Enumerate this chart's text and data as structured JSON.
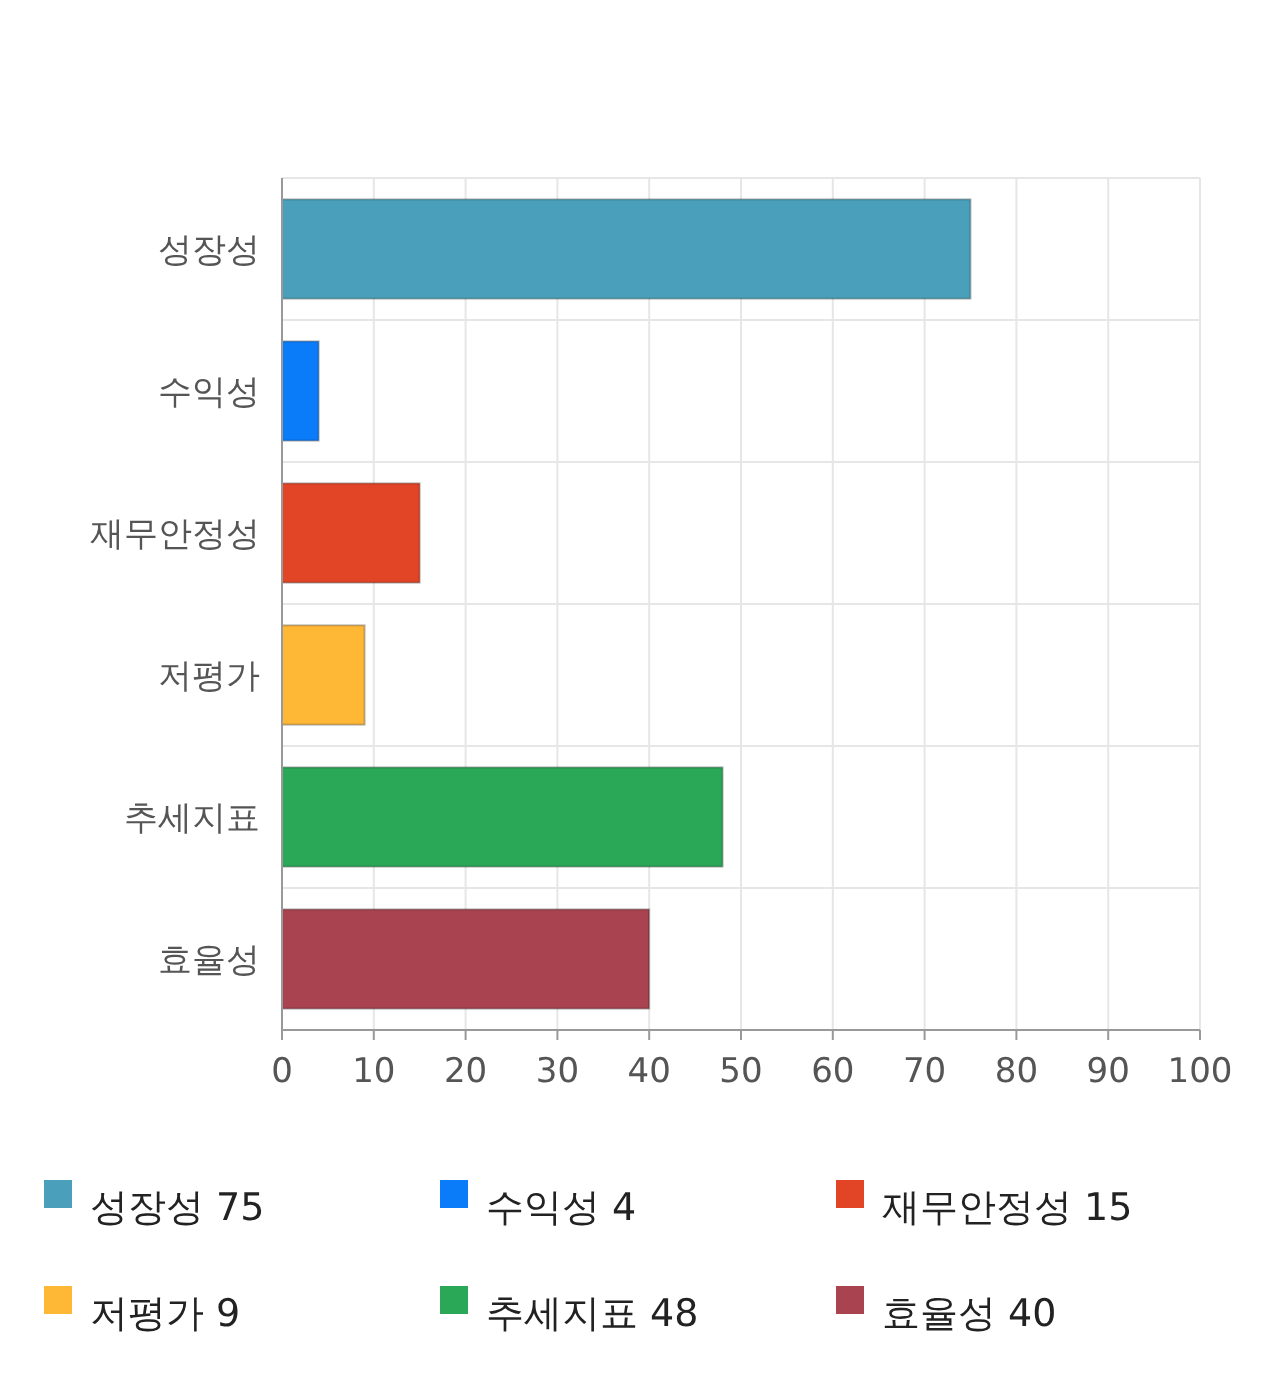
{
  "chart_data": {
    "type": "bar",
    "orientation": "horizontal",
    "categories": [
      "성장성",
      "수익성",
      "재무안정성",
      "저평가",
      "추세지표",
      "효율성"
    ],
    "series": [
      {
        "name": "성장성 75",
        "color": "#4aa0ba",
        "values": [
          75,
          null,
          null,
          null,
          null,
          null
        ]
      },
      {
        "name": "수익성 4",
        "color": "#0a7cfa",
        "values": [
          null,
          4,
          null,
          null,
          null,
          null
        ]
      },
      {
        "name": "재무안정성 15",
        "color": "#e24426",
        "values": [
          null,
          null,
          15,
          null,
          null,
          null
        ]
      },
      {
        "name": "저평가 9",
        "color": "#ffb836",
        "values": [
          null,
          null,
          null,
          9,
          null,
          null
        ]
      },
      {
        "name": "추세지표 48",
        "color": "#2aa757",
        "values": [
          null,
          null,
          null,
          null,
          48,
          null
        ]
      },
      {
        "name": "효율성 40",
        "color": "#a8434f",
        "values": [
          null,
          null,
          null,
          null,
          null,
          40
        ]
      }
    ],
    "xlim": [
      0,
      100
    ],
    "xticks": [
      0,
      10,
      20,
      30,
      40,
      50,
      60,
      70,
      80,
      90,
      100
    ],
    "grid": true,
    "legend": "bottom"
  }
}
